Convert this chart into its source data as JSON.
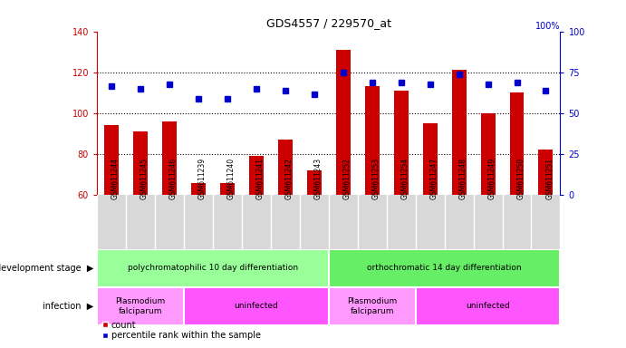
{
  "title": "GDS4557 / 229570_at",
  "samples": [
    "GSM611244",
    "GSM611245",
    "GSM611246",
    "GSM611239",
    "GSM611240",
    "GSM611241",
    "GSM611242",
    "GSM611243",
    "GSM611252",
    "GSM611253",
    "GSM611254",
    "GSM611247",
    "GSM611248",
    "GSM611249",
    "GSM611250",
    "GSM611251"
  ],
  "counts": [
    94,
    91,
    96,
    66,
    66,
    79,
    87,
    72,
    131,
    113,
    111,
    95,
    121,
    100,
    110,
    82
  ],
  "percentiles_left_scale": [
    113,
    112,
    114,
    107,
    107,
    112,
    111,
    109,
    120,
    115,
    115,
    114,
    119,
    114,
    115,
    111
  ],
  "ylim_left": [
    60,
    140
  ],
  "ylim_right": [
    0,
    100
  ],
  "yticks_left": [
    60,
    80,
    100,
    120,
    140
  ],
  "yticks_right": [
    0,
    25,
    50,
    75,
    100
  ],
  "bar_color": "#CC0000",
  "dot_color": "#0000CC",
  "background_color": "#ffffff",
  "dev_stage_groups": [
    {
      "label": "polychromatophilic 10 day differentiation",
      "start": 0,
      "end": 8,
      "color": "#99FF99"
    },
    {
      "label": "orthochromatic 14 day differentiation",
      "start": 8,
      "end": 16,
      "color": "#66EE66"
    }
  ],
  "infection_groups": [
    {
      "label": "Plasmodium\nfalciparum",
      "start": 0,
      "end": 3,
      "color": "#FF99FF"
    },
    {
      "label": "uninfected",
      "start": 3,
      "end": 8,
      "color": "#FF55FF"
    },
    {
      "label": "Plasmodium\nfalciparum",
      "start": 8,
      "end": 11,
      "color": "#FF99FF"
    },
    {
      "label": "uninfected",
      "start": 11,
      "end": 16,
      "color": "#FF55FF"
    }
  ],
  "left_label": "development stage",
  "left_label2": "infection",
  "legend_count_color": "#CC0000",
  "legend_pct_color": "#0000CC",
  "legend_count_label": "count",
  "legend_pct_label": "percentile rank within the sample"
}
